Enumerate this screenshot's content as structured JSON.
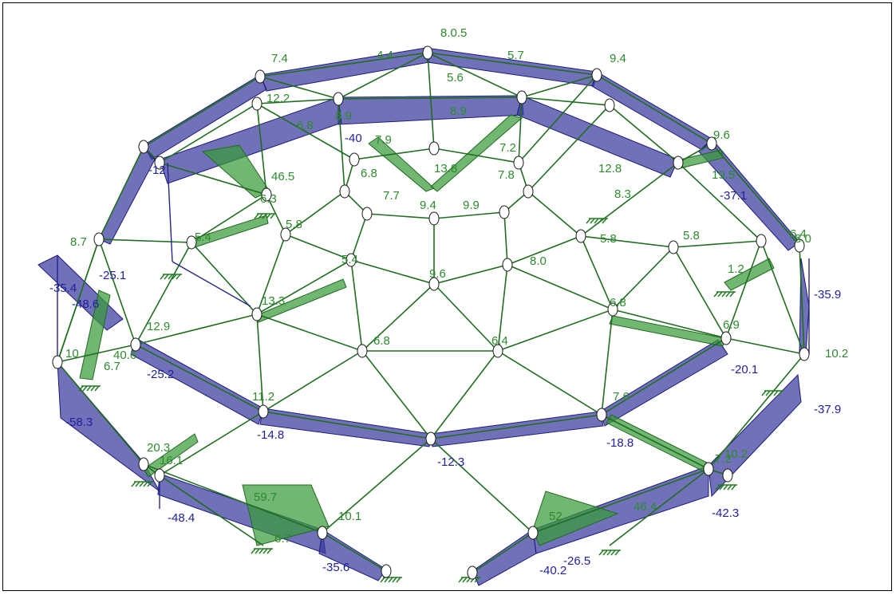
{
  "colors": {
    "compression": "#3a3aa0",
    "tension": "#3a9a3a",
    "compression_label": "#1f1f9a",
    "tension_label": "#2d8a2d"
  },
  "labels_blue": [
    "-35.9",
    "-25.1",
    "-48.6",
    "-25.2",
    "-58.3",
    "-14.8",
    "-12.3",
    "-18.8",
    "-20.1",
    "-37.9",
    "-42.3",
    "-48.4",
    "-35.6",
    "-40.2",
    "-26.5",
    "-35.4",
    "-40",
    "-37.1",
    "-12"
  ],
  "labels_green": [
    "8.0.5",
    "7.4",
    "4.4",
    "5.7",
    "9.4",
    "12.2",
    "8.9",
    "8.9",
    "7.9",
    "5.6",
    "9.6",
    "19.5",
    "6.8",
    "6.8",
    "7.2",
    "13.8",
    "6.3",
    "46.5",
    "8.3",
    "7.7",
    "9.4",
    "9.9",
    "7.8",
    "12.8",
    "5.8",
    "5.4",
    "5.4",
    "9.6",
    "8.0",
    "1.2",
    "6.4",
    "10.2",
    "6.9",
    "5.8",
    "5.8",
    "6.8",
    "13.3",
    "12.9",
    "6.7",
    "40.6",
    "10",
    "6.8",
    "6.4",
    "11.2",
    "7.6",
    "8.7",
    "20.3",
    "16.1",
    "59.7",
    "6.7",
    "10.1",
    "52",
    "46.4",
    "7.2",
    "10.2",
    "8.0"
  ]
}
